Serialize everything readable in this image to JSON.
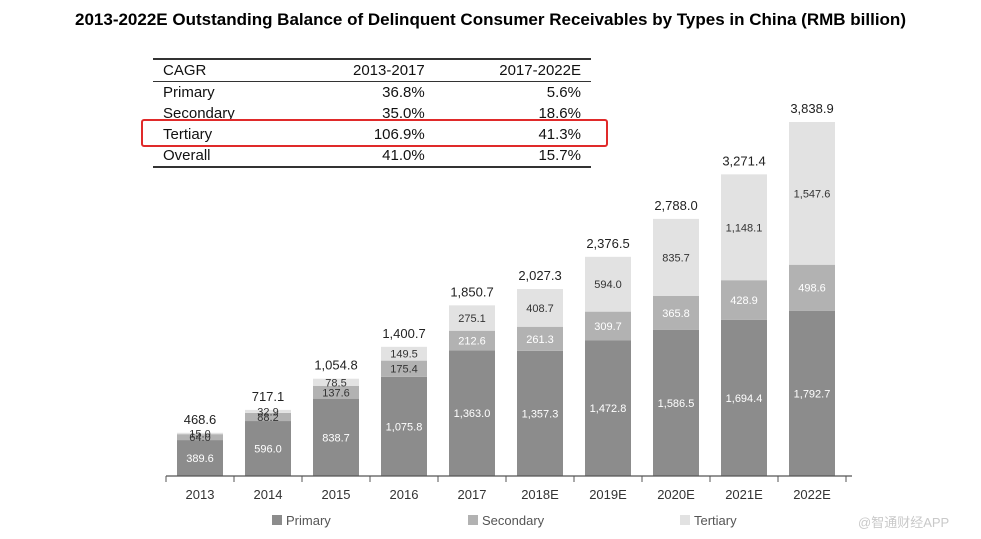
{
  "title": "2013-2022E Outstanding Balance of Delinquent Consumer Receivables by Types in China (RMB billion)",
  "cagr_table": {
    "headers": [
      "CAGR",
      "2013-2017",
      "2017-2022E"
    ],
    "rows": [
      {
        "label": "Primary",
        "v1": "36.8%",
        "v2": "5.6%"
      },
      {
        "label": "Secondary",
        "v1": "35.0%",
        "v2": "18.6%"
      },
      {
        "label": "Tertiary",
        "v1": "106.9%",
        "v2": "41.3%"
      },
      {
        "label": "Overall",
        "v1": "41.0%",
        "v2": "15.7%"
      }
    ],
    "highlighted_row": "Tertiary"
  },
  "colors": {
    "primary": "#8c8c8c",
    "secondary": "#b2b2b2",
    "tertiary": "#e2e2e2",
    "highlight": "#e02a2a"
  },
  "chart_data": {
    "type": "bar",
    "stacked": true,
    "title": "2013-2022E Outstanding Balance of Delinquent Consumer Receivables by Types in China (RMB billion)",
    "categories": [
      "2013",
      "2014",
      "2015",
      "2016",
      "2017",
      "2018E",
      "2019E",
      "2020E",
      "2021E",
      "2022E"
    ],
    "series": [
      {
        "name": "Primary",
        "values": [
          389.6,
          596.0,
          838.7,
          1075.8,
          1363.0,
          1357.3,
          1472.8,
          1586.5,
          1694.4,
          1792.7
        ],
        "labels": [
          "389.6",
          "596.0",
          "838.7",
          "1,075.8",
          "1,363.0",
          "1,357.3",
          "1,472.8",
          "1,586.5",
          "1,694.4",
          "1,792.7"
        ]
      },
      {
        "name": "Secondary",
        "values": [
          64.0,
          88.2,
          137.6,
          175.4,
          212.6,
          261.3,
          309.7,
          365.8,
          428.9,
          498.6
        ],
        "labels": [
          "64.0",
          "88.2",
          "137.6",
          "175.4",
          "212.6",
          "261.3",
          "309.7",
          "365.8",
          "428.9",
          "498.6"
        ]
      },
      {
        "name": "Tertiary",
        "values": [
          15.0,
          32.9,
          78.5,
          149.5,
          275.1,
          408.7,
          594.0,
          835.7,
          1148.1,
          1547.6
        ],
        "labels": [
          "15.0",
          "32.9",
          "78.5",
          "149.5",
          "275.1",
          "408.7",
          "594.0",
          "835.7",
          "1,148.1",
          "1,547.6"
        ]
      }
    ],
    "totals": [
      468.6,
      717.1,
      1054.8,
      1400.7,
      1850.7,
      2027.3,
      2376.5,
      2788.0,
      3271.4,
      3838.9
    ],
    "total_labels": [
      "468.6",
      "717.1",
      "1,054.8",
      "1,400.7",
      "1,850.7",
      "2,027.3",
      "2,376.5",
      "2,788.0",
      "3,271.4",
      "3,838.9"
    ],
    "ylim": [
      0,
      3838.9
    ],
    "xlabel": "",
    "ylabel": "",
    "legend_position": "bottom",
    "grid": false
  },
  "watermark": "@智通财经APP"
}
